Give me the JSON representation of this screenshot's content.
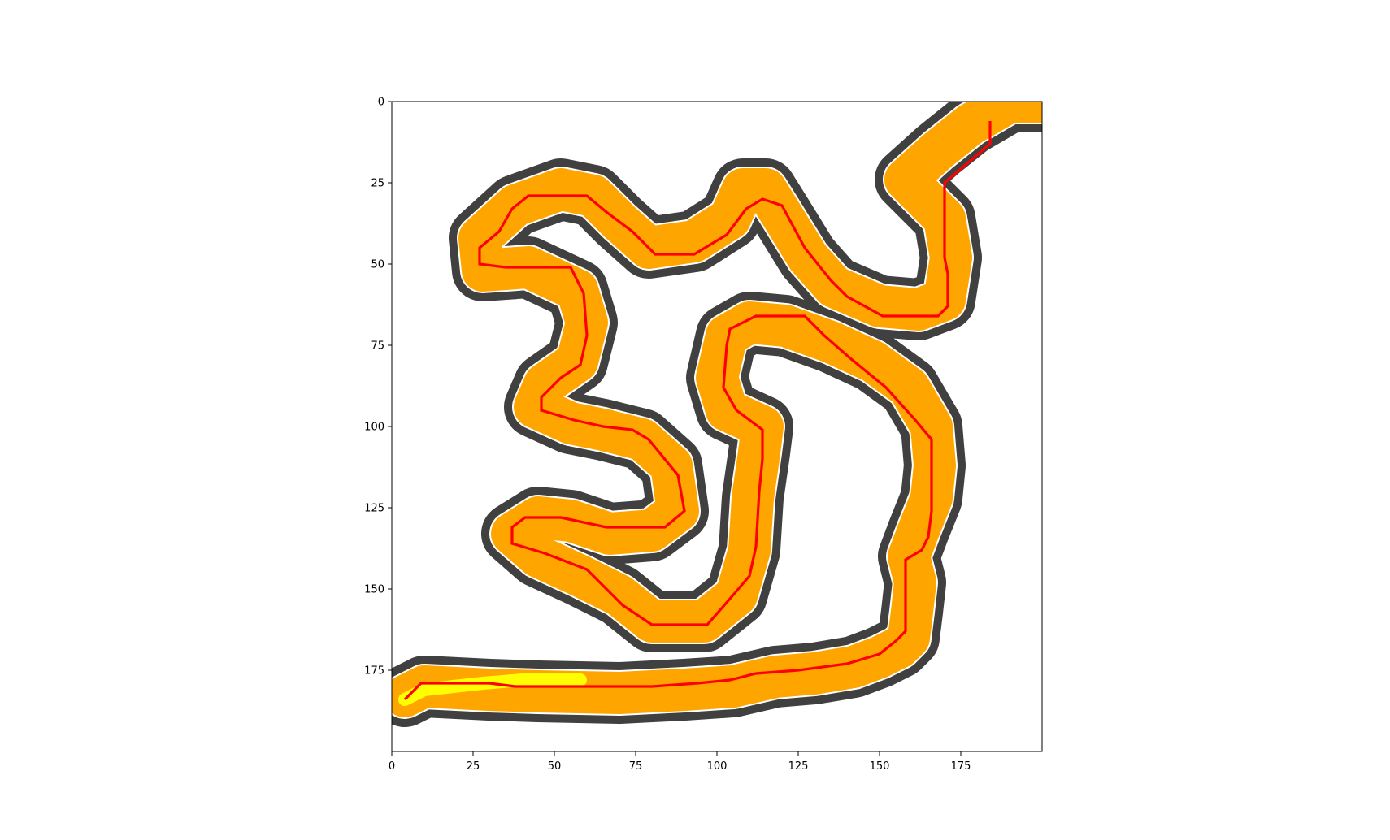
{
  "chart_data": {
    "type": "heatmap",
    "title": "",
    "xlabel": "",
    "ylabel": "",
    "xlim": [
      0,
      200
    ],
    "ylim": [
      200,
      0
    ],
    "x_ticks": [
      0,
      25,
      50,
      75,
      100,
      125,
      150,
      175
    ],
    "y_ticks": [
      0,
      25,
      50,
      75,
      100,
      125,
      150,
      175
    ],
    "y_axis_inverted": true,
    "grid": false,
    "legend": "none",
    "colors": {
      "corridor": "#ffa500",
      "corridor_border": "#404040",
      "path": "#ff0000",
      "goal_highlight": "#ffff00",
      "background": "#ffffff"
    },
    "corridor_centerline": [
      [
        4,
        183
      ],
      [
        10,
        180
      ],
      [
        30,
        181
      ],
      [
        45,
        181.5
      ],
      [
        70,
        182
      ],
      [
        90,
        181
      ],
      [
        105,
        180
      ],
      [
        118,
        177
      ],
      [
        130,
        176
      ],
      [
        142,
        174
      ],
      [
        150,
        171
      ],
      [
        156,
        168
      ],
      [
        159,
        165
      ],
      [
        160,
        157
      ],
      [
        161,
        148
      ],
      [
        159,
        140
      ],
      [
        162,
        132
      ],
      [
        166,
        122
      ],
      [
        167,
        112
      ],
      [
        166,
        100
      ],
      [
        159,
        88
      ],
      [
        148,
        80
      ],
      [
        135,
        74
      ],
      [
        121,
        69
      ],
      [
        110,
        68
      ],
      [
        103,
        72
      ],
      [
        100,
        85
      ],
      [
        103,
        95
      ],
      [
        114,
        100
      ],
      [
        113,
        108
      ],
      [
        111,
        122
      ],
      [
        110,
        138
      ],
      [
        106,
        152
      ],
      [
        96,
        160
      ],
      [
        80,
        160
      ],
      [
        70,
        152
      ],
      [
        58,
        146
      ],
      [
        45,
        140
      ],
      [
        37,
        133
      ],
      [
        45,
        128
      ],
      [
        55,
        129
      ],
      [
        67,
        133
      ],
      [
        80,
        132
      ],
      [
        88,
        126
      ],
      [
        86,
        112
      ],
      [
        77,
        104
      ],
      [
        65,
        101
      ],
      [
        55,
        99
      ],
      [
        44,
        94
      ],
      [
        47,
        87
      ],
      [
        57,
        80
      ],
      [
        60,
        68
      ],
      [
        57,
        58
      ],
      [
        42,
        51
      ],
      [
        28,
        52
      ],
      [
        27,
        42
      ],
      [
        38,
        32
      ],
      [
        52,
        27
      ],
      [
        62,
        29
      ],
      [
        70,
        37
      ],
      [
        79,
        45
      ],
      [
        93,
        43
      ],
      [
        104,
        36
      ],
      [
        108,
        27
      ],
      [
        115,
        27
      ],
      [
        120,
        35
      ],
      [
        128,
        48
      ],
      [
        136,
        57
      ],
      [
        150,
        63
      ],
      [
        162,
        64
      ],
      [
        170,
        61
      ],
      [
        172,
        48
      ],
      [
        170,
        36
      ],
      [
        164,
        30
      ],
      [
        158,
        24
      ],
      [
        168,
        15
      ],
      [
        178,
        7
      ],
      [
        190,
        0
      ],
      [
        200,
        0
      ]
    ],
    "path": [
      [
        4,
        184
      ],
      [
        9,
        179
      ],
      [
        30,
        179
      ],
      [
        38,
        180
      ],
      [
        80,
        180
      ],
      [
        94,
        179
      ],
      [
        104,
        178
      ],
      [
        112,
        176
      ],
      [
        125,
        175
      ],
      [
        140,
        173
      ],
      [
        150,
        170
      ],
      [
        155,
        166
      ],
      [
        158,
        163
      ],
      [
        158,
        149
      ],
      [
        158,
        141
      ],
      [
        163,
        138
      ],
      [
        165,
        134
      ],
      [
        166,
        126
      ],
      [
        166,
        104
      ],
      [
        161,
        98
      ],
      [
        152,
        88
      ],
      [
        141,
        79
      ],
      [
        133,
        72
      ],
      [
        127,
        66
      ],
      [
        112,
        66
      ],
      [
        104,
        70
      ],
      [
        103,
        75
      ],
      [
        102,
        88
      ],
      [
        106,
        95
      ],
      [
        114,
        101
      ],
      [
        114,
        110
      ],
      [
        113,
        120
      ],
      [
        112,
        137
      ],
      [
        110,
        146
      ],
      [
        104,
        153
      ],
      [
        97,
        161
      ],
      [
        80,
        161
      ],
      [
        71,
        155
      ],
      [
        60,
        144
      ],
      [
        47,
        139
      ],
      [
        37,
        136
      ],
      [
        37,
        131
      ],
      [
        41,
        128
      ],
      [
        52,
        128
      ],
      [
        66,
        131
      ],
      [
        84,
        131
      ],
      [
        90,
        126
      ],
      [
        88,
        115
      ],
      [
        79,
        104
      ],
      [
        74,
        101
      ],
      [
        65,
        100
      ],
      [
        56,
        98
      ],
      [
        46,
        95
      ],
      [
        46,
        91
      ],
      [
        52,
        85
      ],
      [
        58,
        81
      ],
      [
        60,
        72
      ],
      [
        59,
        59
      ],
      [
        55,
        51
      ],
      [
        35,
        51
      ],
      [
        27,
        50
      ],
      [
        27,
        45
      ],
      [
        33,
        40
      ],
      [
        37,
        33
      ],
      [
        42,
        29
      ],
      [
        60,
        29
      ],
      [
        66,
        34
      ],
      [
        74,
        40
      ],
      [
        81,
        47
      ],
      [
        93,
        47
      ],
      [
        103,
        41
      ],
      [
        109,
        33
      ],
      [
        114,
        30
      ],
      [
        120,
        32
      ],
      [
        127,
        45
      ],
      [
        135,
        55
      ],
      [
        140,
        60
      ],
      [
        151,
        66
      ],
      [
        168,
        66
      ],
      [
        171,
        63
      ],
      [
        171,
        53
      ],
      [
        170,
        48
      ],
      [
        170,
        40
      ],
      [
        170,
        25
      ],
      [
        184,
        13
      ],
      [
        184,
        6
      ]
    ],
    "goal_highlight": [
      [
        4,
        184
      ],
      [
        10,
        181
      ],
      [
        28,
        179
      ],
      [
        40,
        178
      ],
      [
        58,
        178
      ]
    ]
  }
}
